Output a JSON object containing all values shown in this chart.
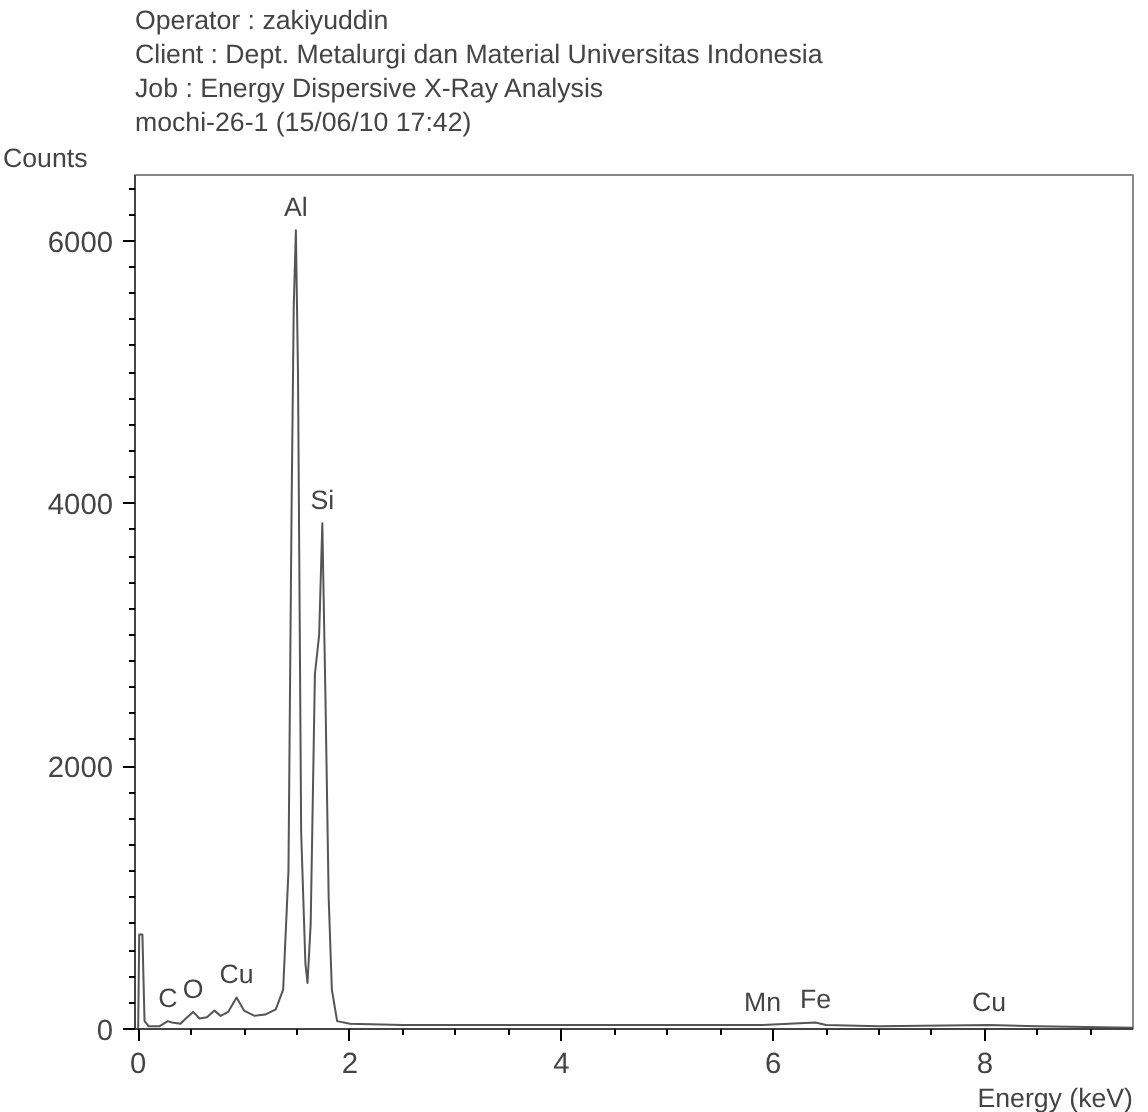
{
  "chart_data": {
    "type": "line",
    "title": "Operator : zakiyuddin",
    "subtitle": "Client : Dept. Metalurgi dan Material Universitas Indonesia",
    "xlabel": "Energy (keV)",
    "ylabel": "Counts",
    "annotations": [
      "Job : Energy Dispersive X-Ray Analysis",
      "mochi-26-1 (15/06/10 17:42)",
      {
        "text": "C",
        "x": 0.28,
        "y": 60
      },
      {
        "text": "O",
        "x": 0.52,
        "y": 130
      },
      {
        "text": "Cu",
        "x": 0.93,
        "y": 240
      },
      {
        "text": "Al",
        "x": 1.49,
        "y": 6080
      },
      {
        "text": "Si",
        "x": 1.74,
        "y": 3850
      },
      {
        "text": "Mn",
        "x": 5.9,
        "y": 30
      },
      {
        "text": "Fe",
        "x": 6.4,
        "y": 50
      },
      {
        "text": "Cu",
        "x": 8.04,
        "y": 30
      }
    ],
    "x": [
      0.0,
      0.01,
      0.04,
      0.06,
      0.1,
      0.2,
      0.28,
      0.32,
      0.4,
      0.45,
      0.52,
      0.58,
      0.65,
      0.72,
      0.78,
      0.85,
      0.93,
      1.0,
      1.1,
      1.2,
      1.3,
      1.37,
      1.42,
      1.45,
      1.47,
      1.49,
      1.51,
      1.54,
      1.58,
      1.6,
      1.63,
      1.67,
      1.71,
      1.74,
      1.77,
      1.8,
      1.83,
      1.88,
      2.0,
      2.5,
      3.0,
      4.0,
      5.0,
      5.9,
      6.4,
      6.5,
      7.0,
      8.04,
      8.5,
      9.4
    ],
    "series": [
      {
        "color": "#555555",
        "values": [
          0,
          720,
          720,
          60,
          20,
          20,
          60,
          50,
          40,
          80,
          130,
          80,
          90,
          140,
          100,
          130,
          240,
          140,
          100,
          110,
          150,
          300,
          1200,
          4000,
          5500,
          6080,
          5000,
          1500,
          500,
          350,
          800,
          2700,
          3000,
          3850,
          2500,
          1000,
          300,
          60,
          40,
          30,
          30,
          30,
          30,
          30,
          50,
          30,
          20,
          30,
          20,
          10
        ]
      }
    ],
    "xlim": [
      -0.03,
      9.4
    ],
    "ylim": [
      0,
      6500
    ],
    "xticks": [
      0,
      2,
      4,
      6,
      8
    ],
    "yticks": [
      0,
      2000,
      4000,
      6000
    ],
    "grid": false,
    "marker": "none",
    "line_style": "solid"
  }
}
